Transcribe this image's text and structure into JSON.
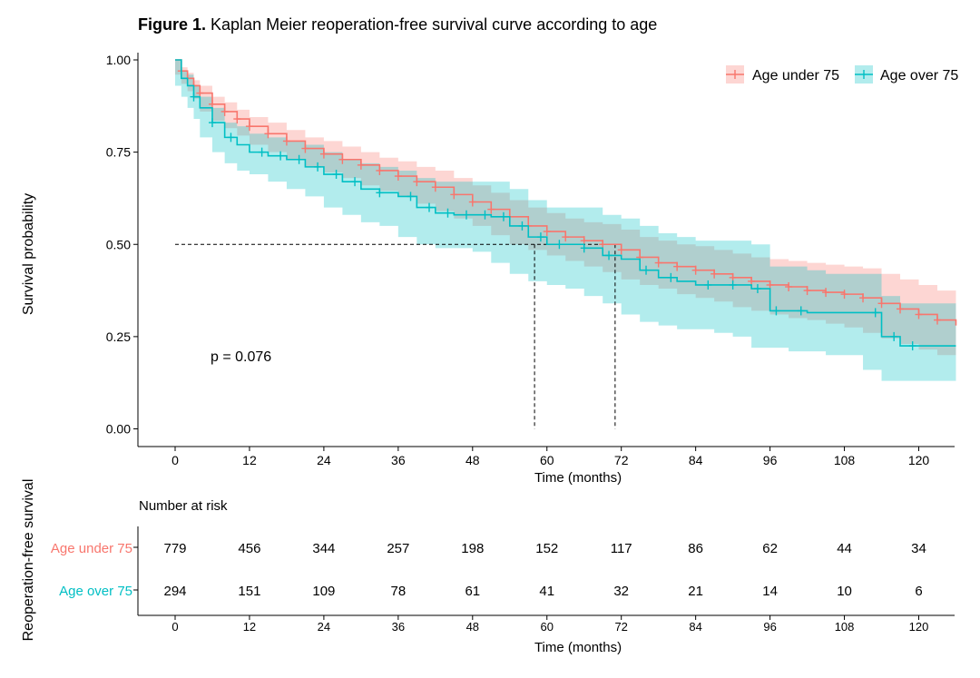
{
  "figure": {
    "label": "Figure 1.",
    "title": "Kaplan Meier reoperation-free survival curve according to age"
  },
  "chart_data": [
    {
      "type": "line",
      "chart": "kaplan-meier",
      "xlabel": "Time (months)",
      "ylabel": "Survival probability",
      "xlim": [
        -5,
        127
      ],
      "ylim": [
        -0.05,
        1.0
      ],
      "xticks": [
        0,
        12,
        24,
        36,
        48,
        60,
        72,
        84,
        96,
        108,
        120
      ],
      "yticks": [
        0.0,
        0.25,
        0.5,
        0.75,
        1.0
      ],
      "ytick_labels": [
        "0.00",
        "0.25",
        "0.50",
        "0.75",
        "1.00"
      ],
      "grid": false,
      "legend_position": "top-right",
      "annotation": "p = 0.076",
      "median_survival": [
        {
          "series": "Age under 75",
          "time": 71
        },
        {
          "series": "Age over 75",
          "time": 58
        }
      ],
      "series": [
        {
          "name": "Age under 75",
          "color": "#F8766D",
          "ci_color": "#F8766D",
          "x": [
            0,
            1,
            2,
            3,
            4,
            6,
            8,
            10,
            12,
            15,
            18,
            21,
            24,
            27,
            30,
            33,
            36,
            39,
            42,
            45,
            48,
            51,
            54,
            57,
            60,
            63,
            66,
            69,
            72,
            75,
            78,
            81,
            84,
            87,
            90,
            93,
            96,
            99,
            102,
            105,
            108,
            111,
            114,
            117,
            120,
            123,
            126
          ],
          "y": [
            1.0,
            0.97,
            0.95,
            0.93,
            0.91,
            0.88,
            0.86,
            0.84,
            0.82,
            0.8,
            0.78,
            0.76,
            0.745,
            0.73,
            0.715,
            0.7,
            0.685,
            0.67,
            0.655,
            0.635,
            0.615,
            0.595,
            0.575,
            0.55,
            0.535,
            0.52,
            0.51,
            0.5,
            0.485,
            0.465,
            0.45,
            0.44,
            0.43,
            0.42,
            0.41,
            0.4,
            0.39,
            0.385,
            0.375,
            0.37,
            0.365,
            0.355,
            0.34,
            0.325,
            0.31,
            0.295,
            0.28
          ],
          "ci_lower": [
            1.0,
            0.96,
            0.935,
            0.915,
            0.895,
            0.86,
            0.835,
            0.815,
            0.795,
            0.77,
            0.75,
            0.73,
            0.71,
            0.695,
            0.68,
            0.66,
            0.645,
            0.63,
            0.61,
            0.59,
            0.57,
            0.55,
            0.525,
            0.5,
            0.485,
            0.47,
            0.455,
            0.44,
            0.425,
            0.405,
            0.39,
            0.38,
            0.365,
            0.355,
            0.345,
            0.33,
            0.32,
            0.31,
            0.3,
            0.295,
            0.285,
            0.275,
            0.26,
            0.245,
            0.23,
            0.215,
            0.2
          ],
          "ci_upper": [
            1.0,
            0.98,
            0.965,
            0.945,
            0.93,
            0.9,
            0.885,
            0.865,
            0.845,
            0.83,
            0.81,
            0.79,
            0.78,
            0.765,
            0.75,
            0.735,
            0.725,
            0.71,
            0.7,
            0.68,
            0.66,
            0.64,
            0.62,
            0.6,
            0.585,
            0.57,
            0.56,
            0.555,
            0.54,
            0.52,
            0.51,
            0.5,
            0.495,
            0.485,
            0.475,
            0.465,
            0.46,
            0.455,
            0.45,
            0.445,
            0.44,
            0.435,
            0.42,
            0.405,
            0.39,
            0.375,
            0.36
          ]
        },
        {
          "name": "Age over 75",
          "color": "#00BFC4",
          "ci_color": "#00BFC4",
          "x": [
            0,
            1,
            2,
            3,
            4,
            6,
            8,
            10,
            12,
            15,
            18,
            21,
            24,
            27,
            30,
            33,
            36,
            39,
            42,
            45,
            48,
            51,
            54,
            57,
            60,
            63,
            66,
            69,
            72,
            75,
            78,
            81,
            84,
            87,
            90,
            93,
            96,
            99,
            102,
            105,
            108,
            111,
            114,
            117,
            120,
            123,
            126
          ],
          "y": [
            1.0,
            0.95,
            0.93,
            0.9,
            0.87,
            0.83,
            0.79,
            0.77,
            0.75,
            0.74,
            0.73,
            0.71,
            0.69,
            0.67,
            0.65,
            0.64,
            0.63,
            0.6,
            0.585,
            0.58,
            0.58,
            0.575,
            0.55,
            0.52,
            0.5,
            0.5,
            0.49,
            0.47,
            0.46,
            0.43,
            0.41,
            0.4,
            0.39,
            0.39,
            0.39,
            0.38,
            0.32,
            0.32,
            0.315,
            0.315,
            0.315,
            0.315,
            0.25,
            0.225,
            0.225,
            0.225,
            0.225
          ],
          "ci_lower": [
            1.0,
            0.93,
            0.9,
            0.87,
            0.84,
            0.79,
            0.75,
            0.72,
            0.7,
            0.69,
            0.67,
            0.65,
            0.63,
            0.6,
            0.58,
            0.56,
            0.55,
            0.52,
            0.5,
            0.49,
            0.49,
            0.48,
            0.45,
            0.42,
            0.4,
            0.39,
            0.38,
            0.36,
            0.34,
            0.31,
            0.29,
            0.28,
            0.27,
            0.27,
            0.26,
            0.25,
            0.22,
            0.22,
            0.21,
            0.21,
            0.2,
            0.2,
            0.16,
            0.13,
            0.13,
            0.13,
            0.13
          ],
          "ci_upper": [
            1.0,
            0.97,
            0.96,
            0.93,
            0.9,
            0.87,
            0.83,
            0.82,
            0.8,
            0.79,
            0.78,
            0.77,
            0.75,
            0.73,
            0.72,
            0.71,
            0.7,
            0.68,
            0.67,
            0.67,
            0.67,
            0.67,
            0.65,
            0.62,
            0.6,
            0.6,
            0.6,
            0.58,
            0.57,
            0.55,
            0.53,
            0.52,
            0.51,
            0.51,
            0.51,
            0.5,
            0.44,
            0.44,
            0.43,
            0.42,
            0.42,
            0.42,
            0.36,
            0.34,
            0.34,
            0.34,
            0.34
          ],
          "censor_x": [
            3,
            6,
            9,
            14,
            17,
            20,
            23,
            26,
            29,
            33,
            38,
            41,
            44,
            47,
            50,
            53,
            56,
            59,
            62,
            66,
            70,
            76,
            80,
            86,
            90,
            94,
            97,
            101,
            113,
            116,
            119
          ]
        }
      ]
    },
    {
      "type": "table",
      "title": "Number at risk",
      "ylabel": "Reoperation-free survival",
      "xlabel": "Time (months)",
      "columns": [
        0,
        12,
        24,
        36,
        48,
        60,
        72,
        84,
        96,
        108,
        120
      ],
      "rows": [
        {
          "name": "Age under 75",
          "color": "#F8766D",
          "values": [
            779,
            456,
            344,
            257,
            198,
            152,
            117,
            86,
            62,
            44,
            34
          ]
        },
        {
          "name": "Age over 75",
          "color": "#00BFC4",
          "values": [
            294,
            151,
            109,
            78,
            61,
            41,
            32,
            21,
            14,
            10,
            6
          ]
        }
      ]
    }
  ]
}
